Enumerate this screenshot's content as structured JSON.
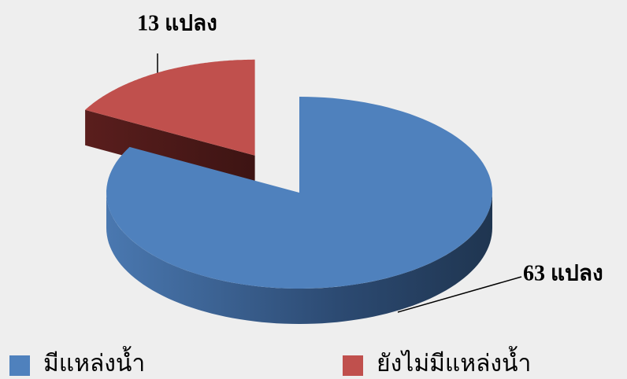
{
  "chart_data": {
    "type": "pie",
    "categories": [
      "มีแหล่งน้ำ",
      "ยังไม่มีแหล่งน้ำ"
    ],
    "values": [
      63,
      13
    ],
    "value_labels": [
      "63 แปลง",
      "13 แปลง"
    ],
    "colors": [
      "#4f81bd",
      "#c0504d"
    ],
    "legend": "bottom"
  }
}
